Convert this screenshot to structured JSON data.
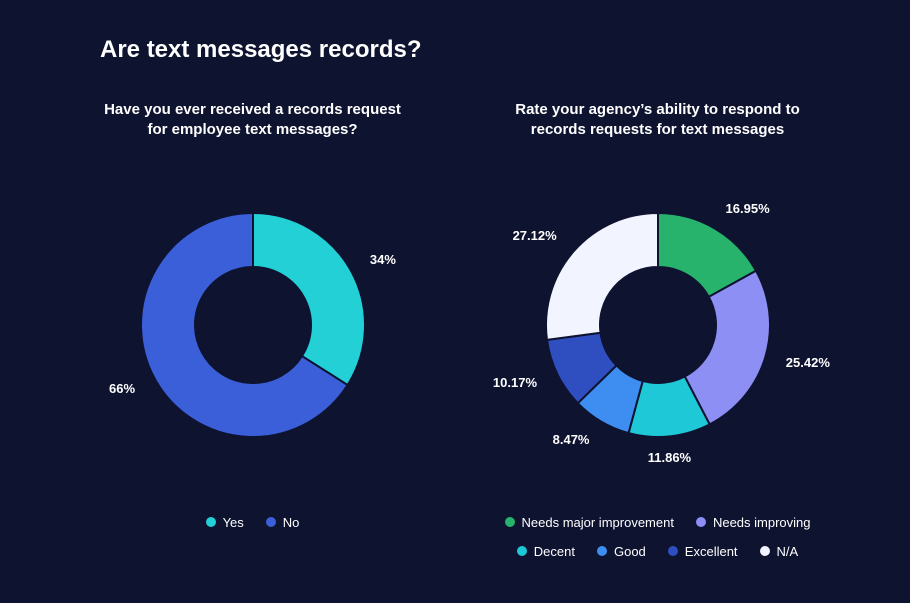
{
  "background_color": "#0e1330",
  "text_color": "#ffffff",
  "main_title": "Are text messages records?",
  "main_title_fontsize": 24,
  "chart_left": {
    "type": "donut",
    "title": "Have you ever received a records request for employee text messages?",
    "title_fontsize": 15,
    "inner_radius": 58,
    "outer_radius": 112,
    "gap_color": "#0e1330",
    "gap_width": 2,
    "start_angle": 0,
    "slices": [
      {
        "label": "Yes",
        "value": 34,
        "color": "#22d0d6",
        "display": "34%"
      },
      {
        "label": "No",
        "value": 66,
        "color": "#3b5fd9",
        "display": "66%"
      }
    ]
  },
  "chart_right": {
    "type": "donut",
    "title": "Rate your agency’s ability to respond to records requests for text messages",
    "title_fontsize": 15,
    "inner_radius": 58,
    "outer_radius": 112,
    "gap_color": "#0e1330",
    "gap_width": 2,
    "start_angle": 0,
    "slices": [
      {
        "label": "Needs major improvement",
        "value": 16.95,
        "color": "#27b36b",
        "display": "16.95%"
      },
      {
        "label": "Needs improving",
        "value": 25.42,
        "color": "#8d8ff5",
        "display": "25.42%"
      },
      {
        "label": "Decent",
        "value": 11.86,
        "color": "#1ec8d6",
        "display": "11.86%"
      },
      {
        "label": "Good",
        "value": 8.47,
        "color": "#3d8ef0",
        "display": "8.47%"
      },
      {
        "label": "Excellent",
        "value": 10.17,
        "color": "#2f4fc0",
        "display": "10.17%"
      },
      {
        "label": "N/A",
        "value": 27.12,
        "color": "#f2f5ff",
        "display": "27.12%"
      }
    ]
  }
}
